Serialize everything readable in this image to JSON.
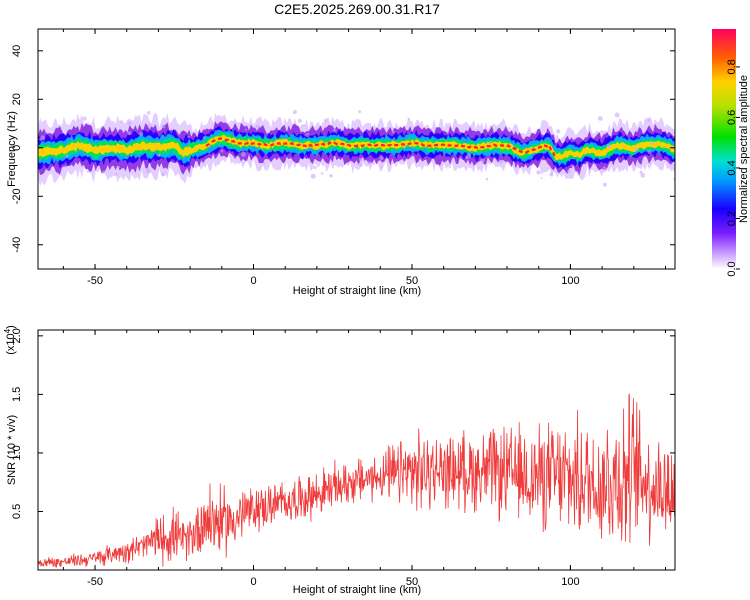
{
  "title": "C2E5.2025.269.00.31.R17",
  "colors": {
    "snr_line": "#f03b3b",
    "axis": "#000000"
  },
  "chart_data": [
    {
      "id": "spectrogram",
      "type": "heatmap",
      "title": "C2E5.2025.269.00.31.R17",
      "xlabel": "Height of straight line (km)",
      "ylabel": "Frequency (Hz)",
      "xlim": [
        -68,
        133
      ],
      "ylim": [
        -50,
        49
      ],
      "xticks": [
        -50,
        0,
        50,
        100
      ],
      "xtick_labels": [
        "-50",
        "0",
        "50",
        "100"
      ],
      "yticks": [
        40,
        20,
        0,
        -20,
        -40
      ],
      "ytick_labels": [
        "40",
        "20",
        "0",
        "-20",
        "-40"
      ],
      "ridge_description": "Energy concentrated near 0 Hz across full height range; peak ridge (red) from about -15 km to 95 km.",
      "ridge": {
        "x": [
          -68,
          -60,
          -55,
          -50,
          -45,
          -40,
          -35,
          -30,
          -25,
          -22,
          -20,
          -15,
          -12,
          -10,
          -5,
          0,
          5,
          10,
          15,
          20,
          25,
          30,
          35,
          40,
          45,
          50,
          55,
          60,
          65,
          70,
          75,
          80,
          83,
          85,
          90,
          93,
          95,
          97,
          100,
          103,
          105,
          110,
          115,
          120,
          125,
          130,
          133
        ],
        "y": [
          -2,
          -1,
          1,
          -1,
          0,
          -1,
          1,
          0,
          1,
          -2,
          -1,
          1,
          3,
          4,
          2,
          2,
          1,
          2,
          1,
          1,
          2,
          1,
          1,
          1,
          1,
          2,
          1,
          1,
          1,
          0,
          1,
          1,
          -1,
          -2,
          0,
          1,
          -3,
          -4,
          -2,
          -3,
          -1,
          -2,
          1,
          0,
          2,
          1,
          -1
        ]
      },
      "colorbar": {
        "label": "Normalized spectral amplitude",
        "range": [
          0,
          0.95
        ],
        "ticks": [
          0.0,
          0.2,
          0.4,
          0.6,
          0.8
        ],
        "tick_labels": [
          "0.0",
          "0.2",
          "0.4",
          "0.6",
          "0.8"
        ]
      }
    },
    {
      "id": "snr",
      "type": "line",
      "xlabel": "Height of straight line (km)",
      "ylabel": "SNR (10 * v/v)",
      "scale_note": "(x10",
      "scale_exp": "4",
      "scale_close": ")",
      "xlim": [
        -68,
        133
      ],
      "ylim": [
        0,
        2.05
      ],
      "xticks": [
        -50,
        0,
        50,
        100
      ],
      "xtick_labels": [
        "-50",
        "0",
        "50",
        "100"
      ],
      "yticks": [
        0.5,
        1.0,
        1.5,
        2.0
      ],
      "ytick_labels": [
        "0.5",
        "1.0",
        "1.5",
        "2.0"
      ],
      "series": [
        {
          "x": [
            -68,
            -60,
            -50,
            -40,
            -35,
            -30,
            -25,
            -22,
            -20,
            -15,
            -10,
            -5,
            0,
            10,
            20,
            30,
            40,
            50,
            60,
            70,
            80,
            90,
            100,
            110,
            115,
            120,
            125,
            133
          ],
          "y": [
            0.06,
            0.07,
            0.1,
            0.17,
            0.2,
            0.27,
            0.3,
            0.25,
            0.28,
            0.45,
            0.4,
            0.45,
            0.52,
            0.58,
            0.65,
            0.75,
            0.8,
            0.83,
            0.85,
            0.85,
            0.82,
            0.8,
            0.78,
            0.75,
            0.8,
            0.85,
            0.75,
            0.65
          ],
          "spread": [
            0.05,
            0.05,
            0.07,
            0.1,
            0.12,
            0.2,
            0.25,
            0.15,
            0.2,
            0.35,
            0.3,
            0.25,
            0.2,
            0.18,
            0.2,
            0.2,
            0.2,
            0.35,
            0.3,
            0.35,
            0.4,
            0.45,
            0.5,
            0.55,
            0.7,
            0.65,
            0.5,
            0.45
          ]
        }
      ]
    }
  ]
}
